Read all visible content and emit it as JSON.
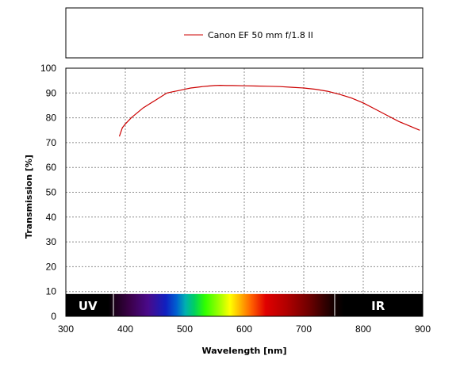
{
  "chart_data": {
    "type": "line",
    "xlabel": "Wavelength [nm]",
    "ylabel": "Transmission [%]",
    "xlim": [
      300,
      900
    ],
    "ylim": [
      0,
      100
    ],
    "x_ticks": [
      300,
      400,
      500,
      600,
      700,
      800,
      900
    ],
    "y_ticks": [
      0,
      10,
      20,
      30,
      40,
      50,
      60,
      70,
      80,
      90,
      100
    ],
    "grid": true,
    "legend_position": "top",
    "series": [
      {
        "name": "Canon EF 50 mm f/1.8 II",
        "color": "#cc0000",
        "x": [
          390,
          395,
          400,
          410,
          420,
          430,
          440,
          450,
          460,
          470,
          480,
          490,
          500,
          510,
          520,
          530,
          540,
          550,
          560,
          570,
          580,
          600,
          620,
          640,
          660,
          680,
          700,
          720,
          740,
          760,
          780,
          800,
          820,
          840,
          860,
          880,
          895
        ],
        "y": [
          72.5,
          76,
          77.5,
          80,
          82,
          84,
          85.5,
          87,
          88.5,
          90,
          90.5,
          91,
          91.5,
          92,
          92.3,
          92.6,
          92.8,
          93,
          93.1,
          93,
          93,
          92.9,
          92.8,
          92.7,
          92.6,
          92.3,
          92,
          91.5,
          90.7,
          89.5,
          88,
          86,
          83.5,
          81,
          78.5,
          76.5,
          75
        ]
      }
    ]
  },
  "spectrum_band": {
    "left_label": "UV",
    "right_label": "IR",
    "top_value": 9
  },
  "colors": {
    "line": "#cc0000",
    "grid": "#8c8c8c",
    "frame": "#000000"
  }
}
